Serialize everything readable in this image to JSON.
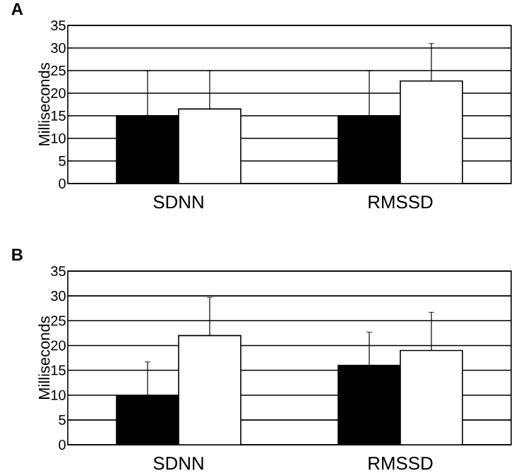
{
  "chart_data": [
    {
      "type": "bar",
      "title": "A",
      "ylabel": "Milliseconds",
      "categories": [
        "SDNN",
        "RMSSD"
      ],
      "ylim": [
        0,
        35
      ],
      "yticks": [
        0,
        5,
        10,
        15,
        20,
        25,
        30,
        35
      ],
      "grid": "y",
      "series": [
        {
          "color": "#000000",
          "values": [
            15,
            15
          ],
          "errors": [
            [
              15,
              25
            ],
            [
              15,
              25
            ]
          ]
        },
        {
          "color": "#ffffff",
          "values": [
            16.5,
            22.7
          ],
          "errors": [
            [
              16.5,
              25
            ],
            [
              22.7,
              31
            ]
          ]
        }
      ]
    },
    {
      "type": "bar",
      "title": "B",
      "ylabel": "Milliseconds",
      "categories": [
        "SDNN",
        "RMSSD"
      ],
      "ylim": [
        0,
        35
      ],
      "yticks": [
        0,
        5,
        10,
        15,
        20,
        25,
        30,
        35
      ],
      "grid": "y",
      "series": [
        {
          "color": "#000000",
          "values": [
            10,
            16
          ],
          "errors": [
            [
              10,
              16.7
            ],
            [
              16,
              22.7
            ]
          ]
        },
        {
          "color": "#ffffff",
          "values": [
            22,
            19
          ],
          "errors": [
            [
              22,
              29.7
            ],
            [
              19,
              26.7
            ]
          ]
        }
      ]
    }
  ]
}
